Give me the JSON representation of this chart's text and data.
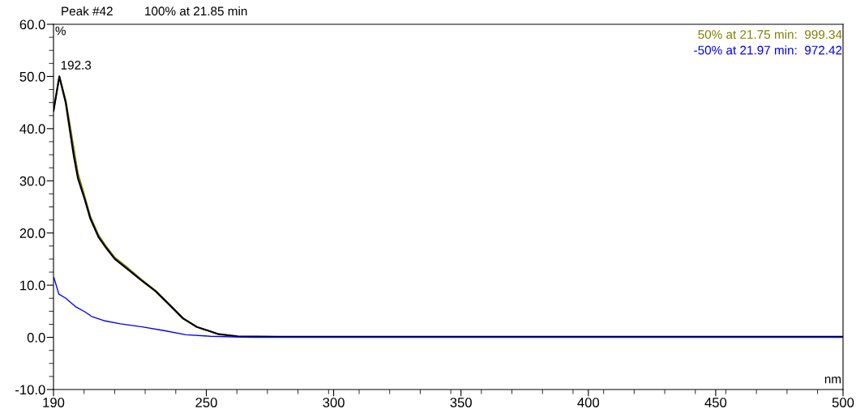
{
  "chart_data": {
    "type": "line",
    "title": "Peak #42",
    "xlabel": "nm",
    "ylabel": "%",
    "xlim": [
      190,
      500
    ],
    "xticks": [
      190,
      250,
      300,
      350,
      400,
      450,
      500
    ],
    "ylim": [
      -10,
      60
    ],
    "yticks": [
      {
        "value": -10,
        "label": "-10.0"
      },
      {
        "value": 0,
        "label": "0.0"
      },
      {
        "value": 10,
        "label": "10.0"
      },
      {
        "value": 20,
        "label": "20.0"
      },
      {
        "value": 30,
        "label": "30.0"
      },
      {
        "value": 40,
        "label": "40.0"
      },
      {
        "value": 50,
        "label": "50.0"
      },
      {
        "value": 60,
        "label": "60.0"
      }
    ],
    "grid": false,
    "legend": false,
    "marker": "none",
    "line_style": "solid",
    "annotations": [
      {
        "text": "192.3",
        "x": 192.3,
        "y": 50.0
      }
    ],
    "series": [
      {
        "name": "100% at 21.85 min",
        "color": "#000000",
        "x": [
          190,
          192.3,
          194.8,
          196.4,
          198,
          199.6,
          202.3,
          204.5,
          207.7,
          210.9,
          214.1,
          219.5,
          224.8,
          230.2,
          235.6,
          240.9,
          246.3,
          254.9,
          262.3,
          278.4,
          300,
          350,
          400,
          450,
          500
        ],
        "values": [
          43.4,
          50.0,
          45.0,
          39.8,
          34.7,
          30.5,
          26.4,
          22.7,
          19.2,
          17.0,
          15.0,
          12.9,
          10.8,
          8.8,
          6.2,
          3.6,
          2.0,
          0.6,
          0.2,
          0.1,
          0.1,
          0.1,
          0.1,
          0.1,
          0.1
        ]
      },
      {
        "name": "50% at 21.75 min:  999.34",
        "color": "#808000",
        "x": [
          190,
          192.3,
          194.8,
          196.4,
          198,
          199.6,
          202.3,
          204.5,
          207.7,
          210.9,
          214.1,
          219.5,
          224.8,
          230.2,
          235.6,
          240.9,
          246.3,
          254.9
        ],
        "values": [
          43.4,
          50.0,
          45.5,
          41.0,
          36.2,
          31.5,
          27.0,
          23.2,
          19.6,
          17.3,
          15.3,
          13.2,
          11.0,
          8.9,
          6.3,
          3.7,
          2.0,
          0.6
        ]
      },
      {
        "name": "-50% at 21.97 min:  972.42",
        "color": "#0000ff",
        "x": [
          190.2,
          192.1,
          194.8,
          198.6,
          202.3,
          205.0,
          209.8,
          216.3,
          224.8,
          233.4,
          242.0,
          251.6,
          267.7,
          300,
          350,
          400,
          450,
          500
        ],
        "values": [
          11.4,
          8.3,
          7.5,
          5.9,
          4.9,
          4.0,
          3.2,
          2.6,
          2.0,
          1.3,
          0.5,
          0.2,
          0,
          0,
          0,
          0,
          0,
          0
        ]
      }
    ]
  }
}
